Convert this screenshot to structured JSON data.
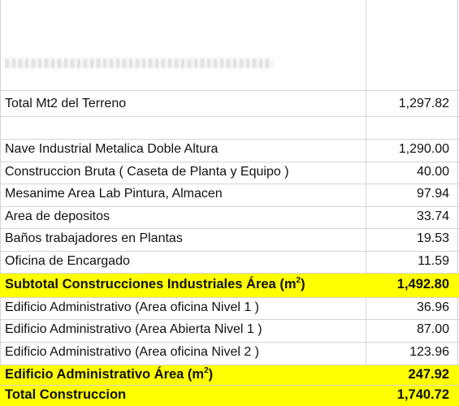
{
  "rows": [
    {
      "label": "Total Mt2 del Terreno",
      "value": "1,297.82"
    },
    {
      "label": "Nave Industrial Metalica Doble Altura",
      "value": "1,290.00"
    },
    {
      "label": "Construccion Bruta ( Caseta de Planta y Equipo )",
      "value": "40.00"
    },
    {
      "label": "Mesanime Area Lab Pintura,  Almacen",
      "value": "97.94"
    },
    {
      "label": "Area de depositos",
      "value": "33.74"
    },
    {
      "label": "Baños trabajadores en Plantas",
      "value": "19.53"
    },
    {
      "label": "Oficina de Encargado",
      "value": "11.59"
    },
    {
      "label": "Subtotal Construcciones Industriales Área (m",
      "sup": "2",
      "suffix": ")",
      "value": "1,492.80"
    },
    {
      "label": "Edificio Administrativo  (Area oficina Nivel 1 )",
      "value": "36.96"
    },
    {
      "label": "Edificio Administrativo  (Area Abierta Nivel 1 )",
      "value": "87.00"
    },
    {
      "label": "Edificio Administrativo  (Area oficina Nivel 2 )",
      "value": "123.96"
    },
    {
      "label": "Edificio Administrativo  Área (m",
      "sup": "2",
      "suffix": ")",
      "value": "247.92"
    },
    {
      "label": "Total Construccion",
      "value": "1,740.72"
    }
  ],
  "colors": {
    "highlight": "#ffff00",
    "gridline": "#d4d4d4"
  }
}
